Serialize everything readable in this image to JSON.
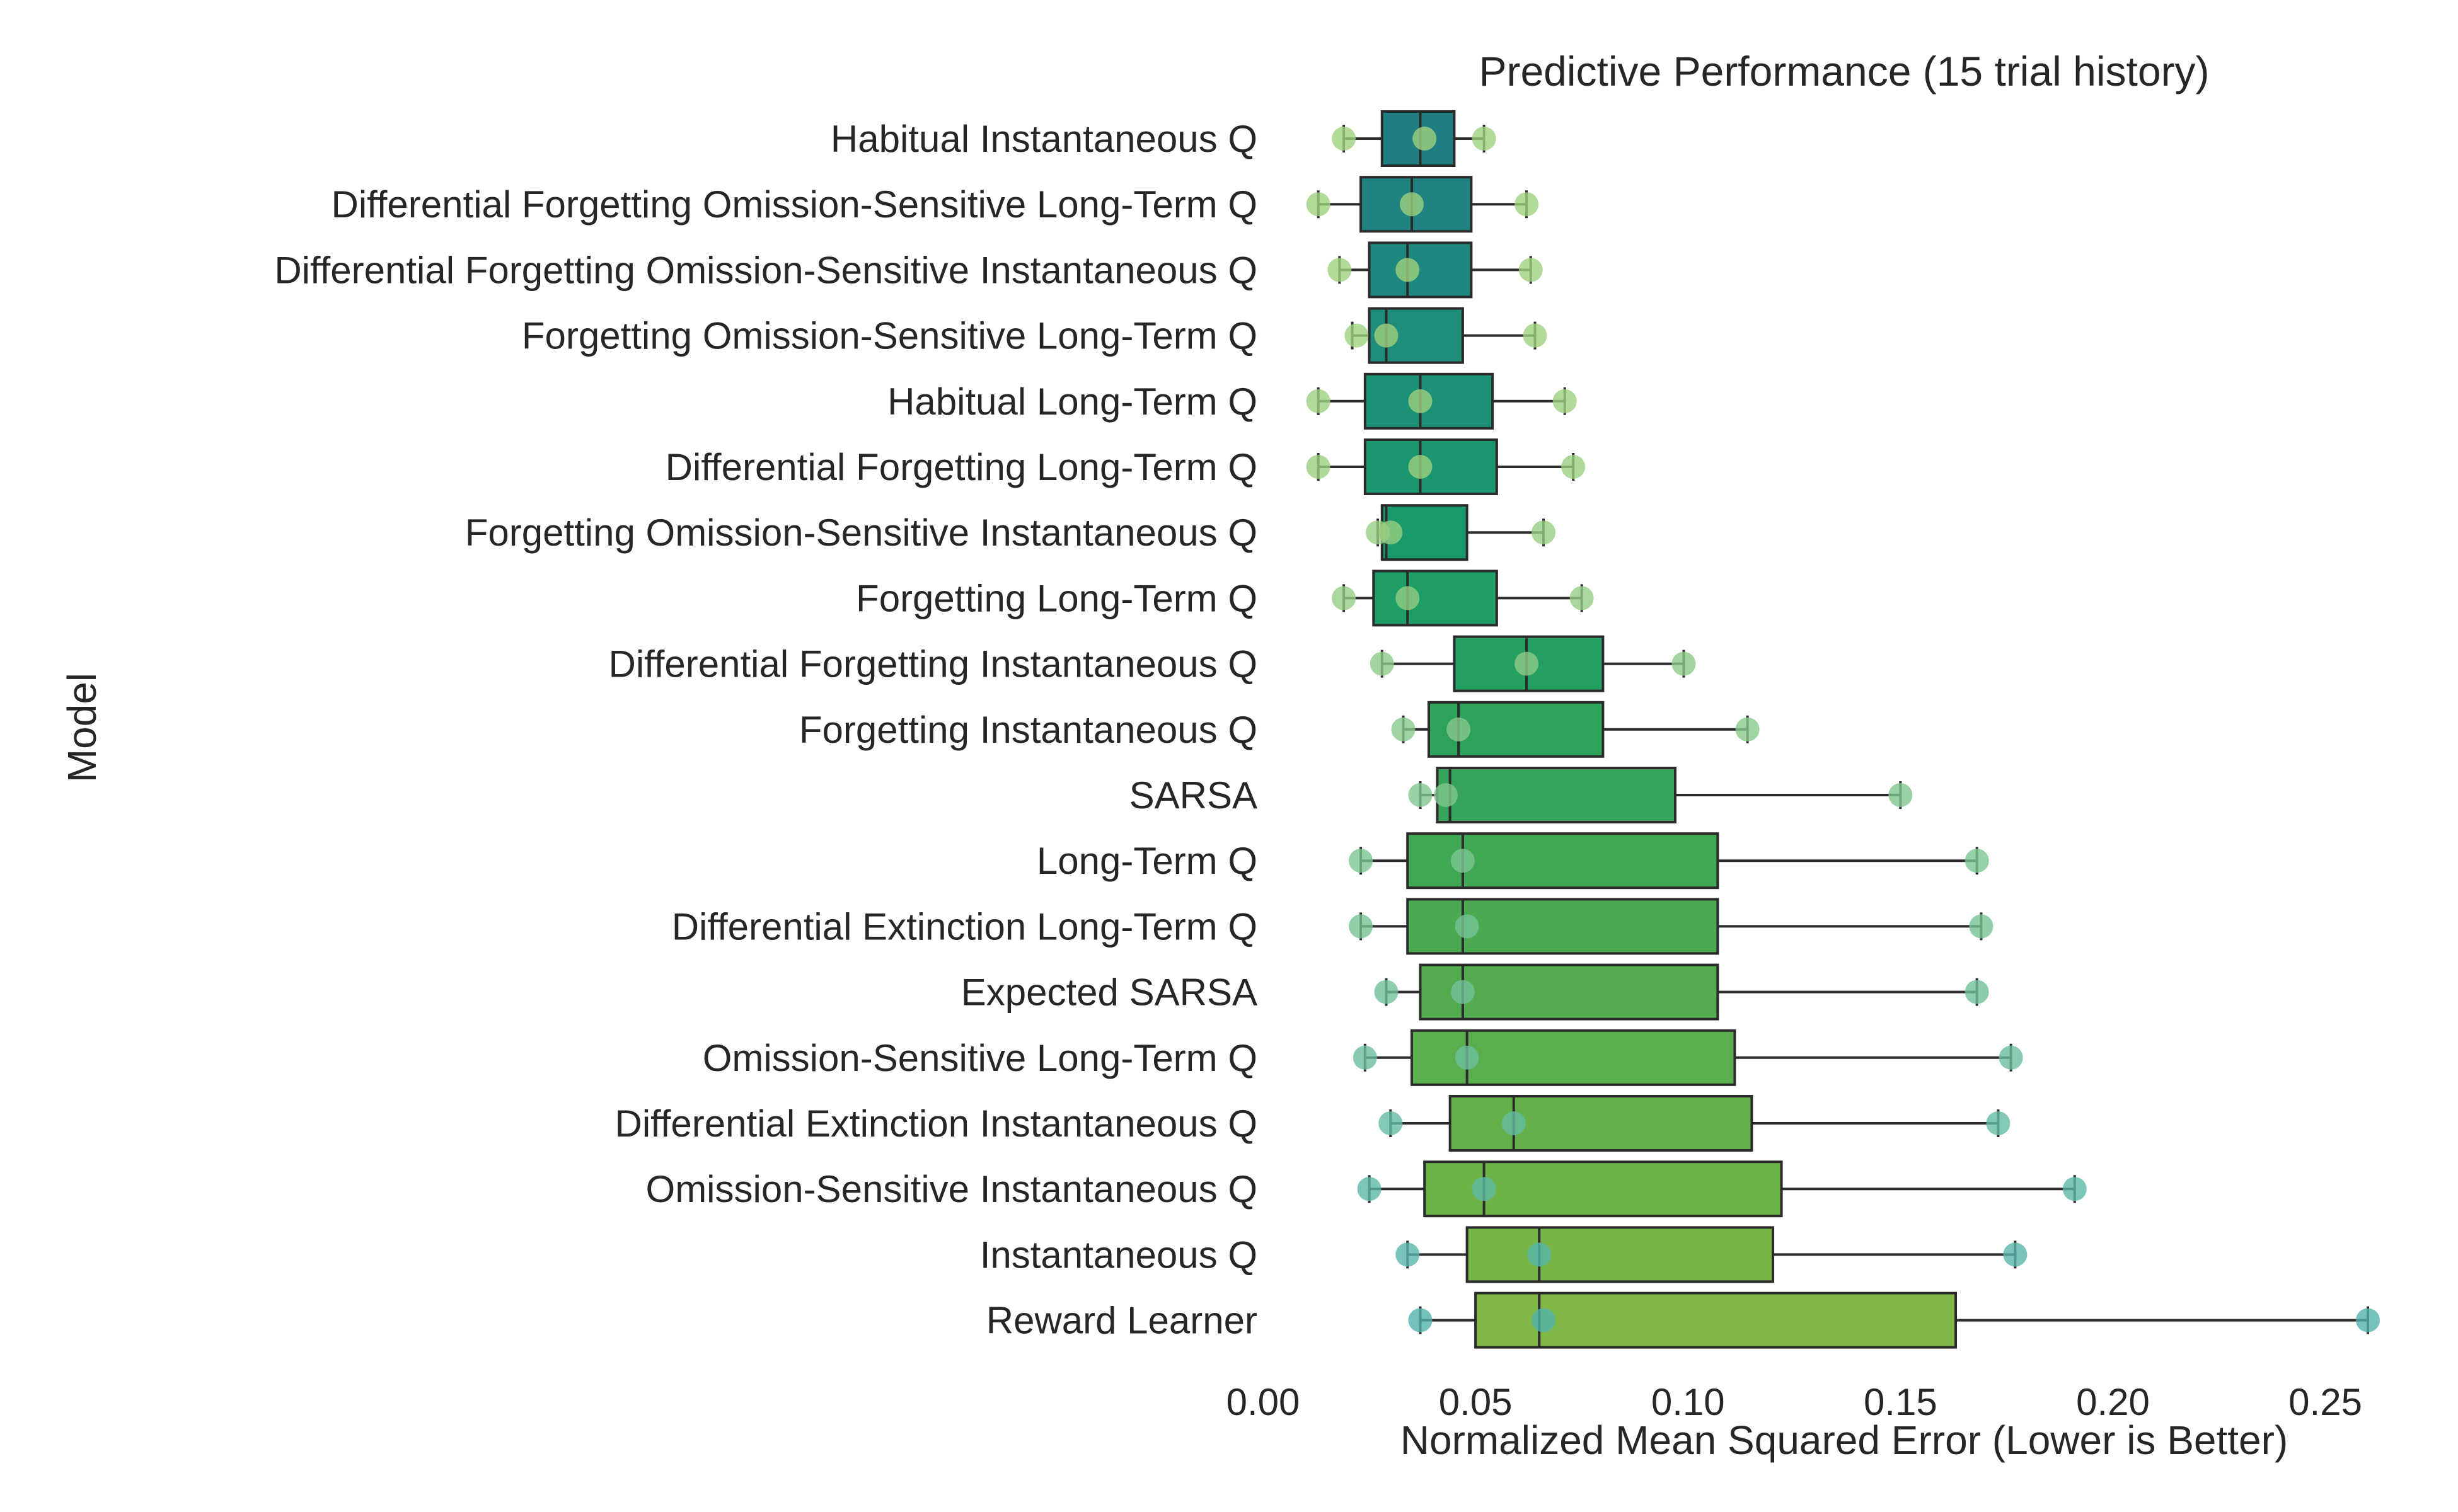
{
  "chart_data": {
    "type": "box",
    "title": "Predictive Performance (15 trial history)",
    "xlabel": "Normalized Mean Squared Error (Lower is Better)",
    "ylabel": "Model",
    "xlim": [
      0.0,
      0.26
    ],
    "xticks": [
      "0.00",
      "0.05",
      "0.10",
      "0.15",
      "0.20",
      "0.25"
    ],
    "grid": false,
    "categories": [
      "Habitual Instantaneous Q",
      "Differential Forgetting Omission-Sensitive Long-Term Q",
      "Differential Forgetting Omission-Sensitive Instantaneous Q",
      "Forgetting Omission-Sensitive Long-Term Q",
      "Habitual Long-Term Q",
      "Differential Forgetting Long-Term Q",
      "Forgetting Omission-Sensitive Instantaneous Q",
      "Forgetting Long-Term Q",
      "Differential Forgetting Instantaneous Q",
      "Forgetting Instantaneous Q",
      "SARSA",
      "Long-Term Q",
      "Differential Extinction Long-Term Q",
      "Expected SARSA",
      "Omission-Sensitive Long-Term Q",
      "Differential Extinction Instantaneous Q",
      "Omission-Sensitive Instantaneous Q",
      "Instantaneous Q",
      "Reward Learner"
    ],
    "boxes": [
      {
        "min": 0.019,
        "q1": 0.028,
        "median": 0.037,
        "q3": 0.045,
        "max": 0.052,
        "points": [
          0.019,
          0.038,
          0.052
        ]
      },
      {
        "min": 0.013,
        "q1": 0.023,
        "median": 0.035,
        "q3": 0.049,
        "max": 0.062,
        "points": [
          0.013,
          0.035,
          0.062
        ]
      },
      {
        "min": 0.018,
        "q1": 0.025,
        "median": 0.034,
        "q3": 0.049,
        "max": 0.063,
        "points": [
          0.018,
          0.034,
          0.063
        ]
      },
      {
        "min": 0.021,
        "q1": 0.025,
        "median": 0.029,
        "q3": 0.047,
        "max": 0.064,
        "points": [
          0.022,
          0.029,
          0.064
        ]
      },
      {
        "min": 0.013,
        "q1": 0.024,
        "median": 0.037,
        "q3": 0.054,
        "max": 0.071,
        "points": [
          0.013,
          0.037,
          0.071
        ]
      },
      {
        "min": 0.013,
        "q1": 0.024,
        "median": 0.037,
        "q3": 0.055,
        "max": 0.073,
        "points": [
          0.013,
          0.037,
          0.073
        ]
      },
      {
        "min": 0.027,
        "q1": 0.028,
        "median": 0.029,
        "q3": 0.048,
        "max": 0.066,
        "points": [
          0.027,
          0.03,
          0.066
        ]
      },
      {
        "min": 0.019,
        "q1": 0.026,
        "median": 0.034,
        "q3": 0.055,
        "max": 0.075,
        "points": [
          0.019,
          0.034,
          0.075
        ]
      },
      {
        "min": 0.028,
        "q1": 0.045,
        "median": 0.062,
        "q3": 0.08,
        "max": 0.099,
        "points": [
          0.028,
          0.062,
          0.099
        ]
      },
      {
        "min": 0.033,
        "q1": 0.039,
        "median": 0.046,
        "q3": 0.08,
        "max": 0.114,
        "points": [
          0.033,
          0.046,
          0.114
        ]
      },
      {
        "min": 0.037,
        "q1": 0.041,
        "median": 0.044,
        "q3": 0.097,
        "max": 0.15,
        "points": [
          0.037,
          0.043,
          0.15
        ]
      },
      {
        "min": 0.023,
        "q1": 0.034,
        "median": 0.047,
        "q3": 0.107,
        "max": 0.168,
        "points": [
          0.023,
          0.047,
          0.168
        ]
      },
      {
        "min": 0.023,
        "q1": 0.034,
        "median": 0.047,
        "q3": 0.107,
        "max": 0.169,
        "points": [
          0.023,
          0.048,
          0.169
        ]
      },
      {
        "min": 0.029,
        "q1": 0.037,
        "median": 0.047,
        "q3": 0.107,
        "max": 0.168,
        "points": [
          0.029,
          0.047,
          0.168
        ]
      },
      {
        "min": 0.024,
        "q1": 0.035,
        "median": 0.048,
        "q3": 0.111,
        "max": 0.176,
        "points": [
          0.024,
          0.048,
          0.176
        ]
      },
      {
        "min": 0.03,
        "q1": 0.044,
        "median": 0.059,
        "q3": 0.115,
        "max": 0.173,
        "points": [
          0.03,
          0.059,
          0.173
        ]
      },
      {
        "min": 0.025,
        "q1": 0.038,
        "median": 0.052,
        "q3": 0.122,
        "max": 0.191,
        "points": [
          0.025,
          0.052,
          0.191
        ]
      },
      {
        "min": 0.034,
        "q1": 0.048,
        "median": 0.065,
        "q3": 0.12,
        "max": 0.177,
        "points": [
          0.034,
          0.065,
          0.177
        ]
      },
      {
        "min": 0.037,
        "q1": 0.05,
        "median": 0.065,
        "q3": 0.163,
        "max": 0.26,
        "points": [
          0.037,
          0.066,
          0.26
        ]
      }
    ],
    "box_colors": [
      "#1f7f82",
      "#1f8481",
      "#1f887e",
      "#1e8d7a",
      "#1b9175",
      "#199670",
      "#1a9a6b",
      "#1f9d66",
      "#269f62",
      "#2ea25d",
      "#37a559",
      "#40a755",
      "#49aa52",
      "#52ac4f",
      "#5bae4d",
      "#64b14a",
      "#6db348",
      "#76b547",
      "#7fb847"
    ],
    "point_colors": [
      "#9fd17e",
      "#9fd17e",
      "#9fd17e",
      "#9fd17e",
      "#9dd07f",
      "#9bcf80",
      "#98ce82",
      "#94cd84",
      "#8ecb87",
      "#88c98b",
      "#82c78e",
      "#7cc592",
      "#76c396",
      "#70c19a",
      "#6abe9e",
      "#64bca2",
      "#5eb9a6",
      "#58b6aa",
      "#52b3ad"
    ]
  }
}
